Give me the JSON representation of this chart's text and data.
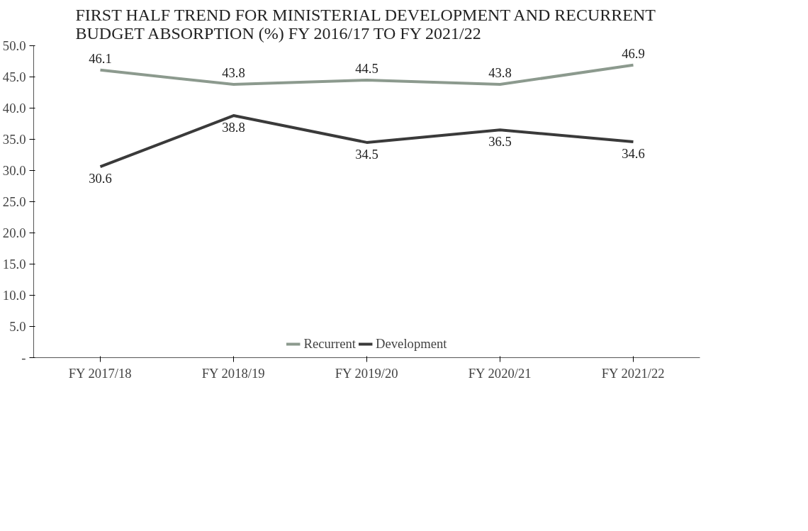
{
  "chart_data": {
    "type": "line",
    "title": "FIRST HALF TREND FOR MINISTERIAL DEVELOPMENT AND RECURRENT BUDGET ABSORPTION (%) FY 2016/17  TO FY 2021/22",
    "categories": [
      "FY 2017/18",
      "FY 2018/19",
      "FY 2019/20",
      "FY 2020/21",
      "FY 2021/22"
    ],
    "series": [
      {
        "name": "Recurrent",
        "color": "#8c9a8e",
        "values": [
          46.1,
          43.8,
          44.5,
          43.8,
          46.9
        ]
      },
      {
        "name": "Development",
        "color": "#3a3a3a",
        "values": [
          30.6,
          38.8,
          34.5,
          36.5,
          34.6
        ]
      }
    ],
    "ylim": [
      0,
      50
    ],
    "yticks": [
      {
        "value": 0,
        "label": "-"
      },
      {
        "value": 5,
        "label": "5.0"
      },
      {
        "value": 10,
        "label": "10.0"
      },
      {
        "value": 15,
        "label": "15.0"
      },
      {
        "value": 20,
        "label": "20.0"
      },
      {
        "value": 25,
        "label": "25.0"
      },
      {
        "value": 30,
        "label": "30.0"
      },
      {
        "value": 35,
        "label": "35.0"
      },
      {
        "value": 40,
        "label": "40.0"
      },
      {
        "value": 45,
        "label": "45.0"
      },
      {
        "value": 50,
        "label": "50.0"
      }
    ],
    "data_labels": true,
    "legend": "bottom",
    "grid": false,
    "marker": "none",
    "line_style": "solid"
  }
}
